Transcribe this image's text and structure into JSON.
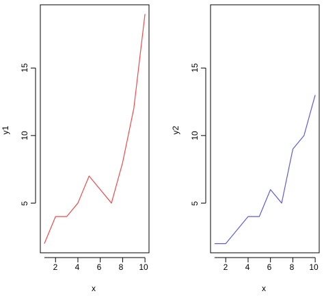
{
  "chart_data": [
    {
      "type": "line",
      "xlabel": "x",
      "ylabel": "y1",
      "x": [
        1,
        2,
        3,
        4,
        5,
        6,
        7,
        8,
        9,
        10
      ],
      "series": [
        {
          "values": [
            2,
            4,
            4,
            5,
            7,
            6,
            5,
            8,
            12,
            19
          ],
          "color": "#ef4a4a"
        }
      ],
      "xlim": [
        0.64,
        10.36
      ],
      "ylim": [
        1.32,
        19.68
      ],
      "xticks": [
        2,
        4,
        6,
        8,
        10
      ],
      "yticks": [
        5,
        10,
        15
      ],
      "xtick_labels": [
        "2",
        "4",
        "6",
        "8",
        "10"
      ],
      "ytick_labels": [
        "5",
        "10",
        "15"
      ],
      "grid": false,
      "legend": "none"
    },
    {
      "type": "line",
      "xlabel": "x",
      "ylabel": "y2",
      "x": [
        1,
        2,
        3,
        4,
        5,
        6,
        7,
        8,
        9,
        10
      ],
      "series": [
        {
          "values": [
            2,
            2,
            3,
            4,
            4,
            6,
            5,
            9,
            10,
            13
          ],
          "color": "#5b5bdb"
        }
      ],
      "xlim": [
        0.64,
        10.36
      ],
      "ylim": [
        1.32,
        19.68
      ],
      "xticks": [
        2,
        4,
        6,
        8,
        10
      ],
      "yticks": [
        5,
        10,
        15
      ],
      "xtick_labels": [
        "2",
        "4",
        "6",
        "8",
        "10"
      ],
      "ytick_labels": [
        "5",
        "10",
        "15"
      ],
      "grid": false,
      "legend": "none"
    }
  ]
}
